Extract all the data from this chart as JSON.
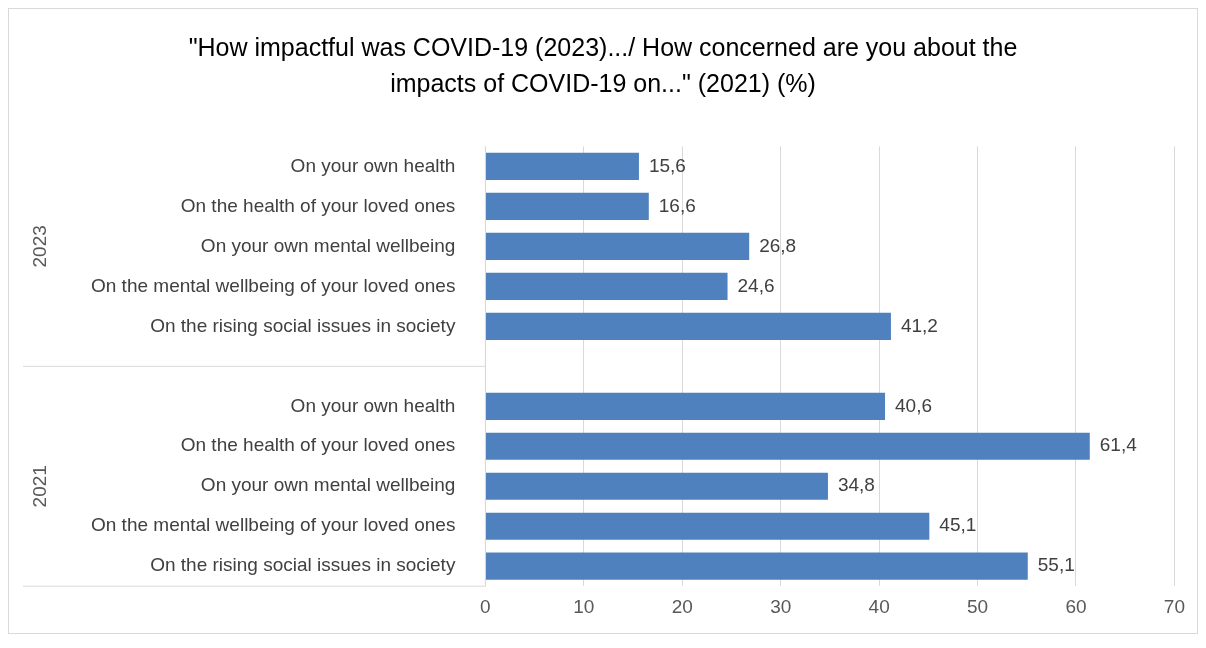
{
  "chart_data": {
    "type": "bar",
    "orientation": "horizontal",
    "title": "\"How impactful was COVID-19 (2023).../ How concerned are you about the impacts of COVID-19 on...\" (2021) (%)",
    "categories": [
      "On your own health",
      "On the health of your loved ones",
      "On your own mental wellbeing",
      "On the mental wellbeing of your loved ones",
      "On the rising social issues in society",
      null,
      "On your own health",
      "On the health of your loved ones",
      "On your own mental wellbeing",
      "On the mental wellbeing of your loved ones",
      "On the rising social issues in society"
    ],
    "values": [
      15.6,
      16.6,
      26.8,
      24.6,
      41.2,
      null,
      40.6,
      61.4,
      34.8,
      45.1,
      55.1
    ],
    "value_labels": [
      "15,6",
      "16,6",
      "26,8",
      "24,6",
      "41,2",
      null,
      "40,6",
      "61,4",
      "34,8",
      "45,1",
      "55,1"
    ],
    "color": "#4e81bd",
    "annotations": [
      "2023",
      "2021"
    ],
    "xlim": [
      0,
      70
    ],
    "xticks": [
      0,
      10,
      20,
      30,
      40,
      50,
      60,
      70
    ],
    "grid": "x",
    "legend": false
  }
}
